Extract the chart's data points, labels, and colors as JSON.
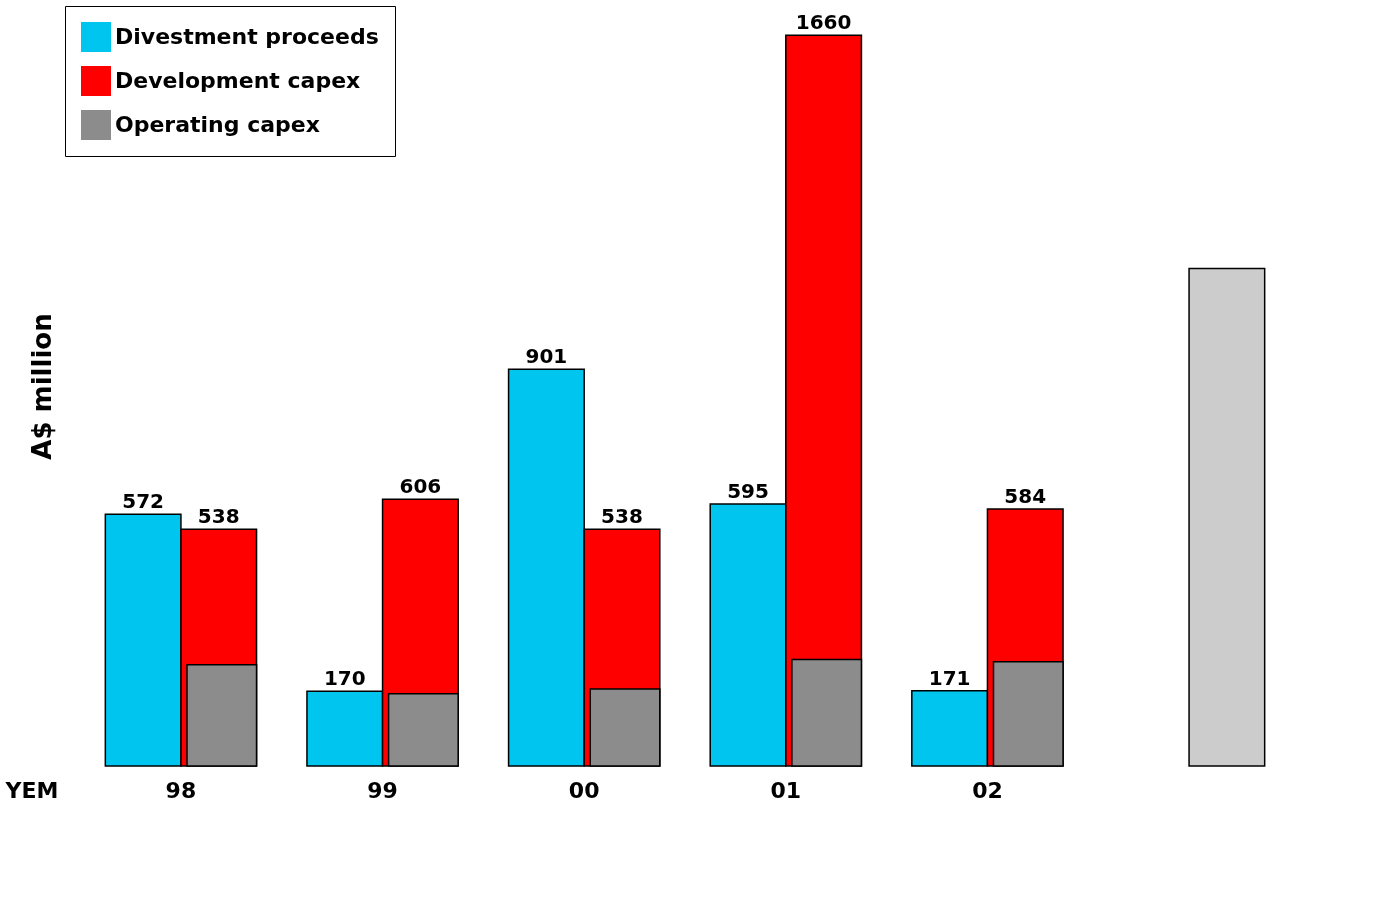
{
  "chart_data": {
    "type": "bar",
    "xlabel": "YEM",
    "ylabel": "A$ million",
    "categories": [
      "98",
      "99",
      "00",
      "01",
      "02",
      null
    ],
    "legend": "top left",
    "grid": false,
    "series": [
      {
        "name": "Divestment proceeds",
        "color": "#00c5ee",
        "values": [
          572,
          170,
          901,
          595,
          171,
          null
        ],
        "value_labels": [
          "572",
          "170",
          "901",
          "595",
          "171",
          null
        ]
      },
      {
        "name": "Development capex",
        "color": "#ff0000",
        "values": [
          538,
          606,
          538,
          1660,
          584,
          null
        ],
        "value_labels": [
          "538",
          "606",
          "538",
          "1660",
          "584",
          null
        ]
      },
      {
        "name": "Operating capex",
        "color": "#8c8c8c",
        "values": [
          230,
          164,
          175,
          242,
          237,
          null
        ]
      },
      {
        "color": "#cccccc",
        "values": [
          null,
          null,
          null,
          null,
          null,
          1130
        ]
      }
    ]
  }
}
